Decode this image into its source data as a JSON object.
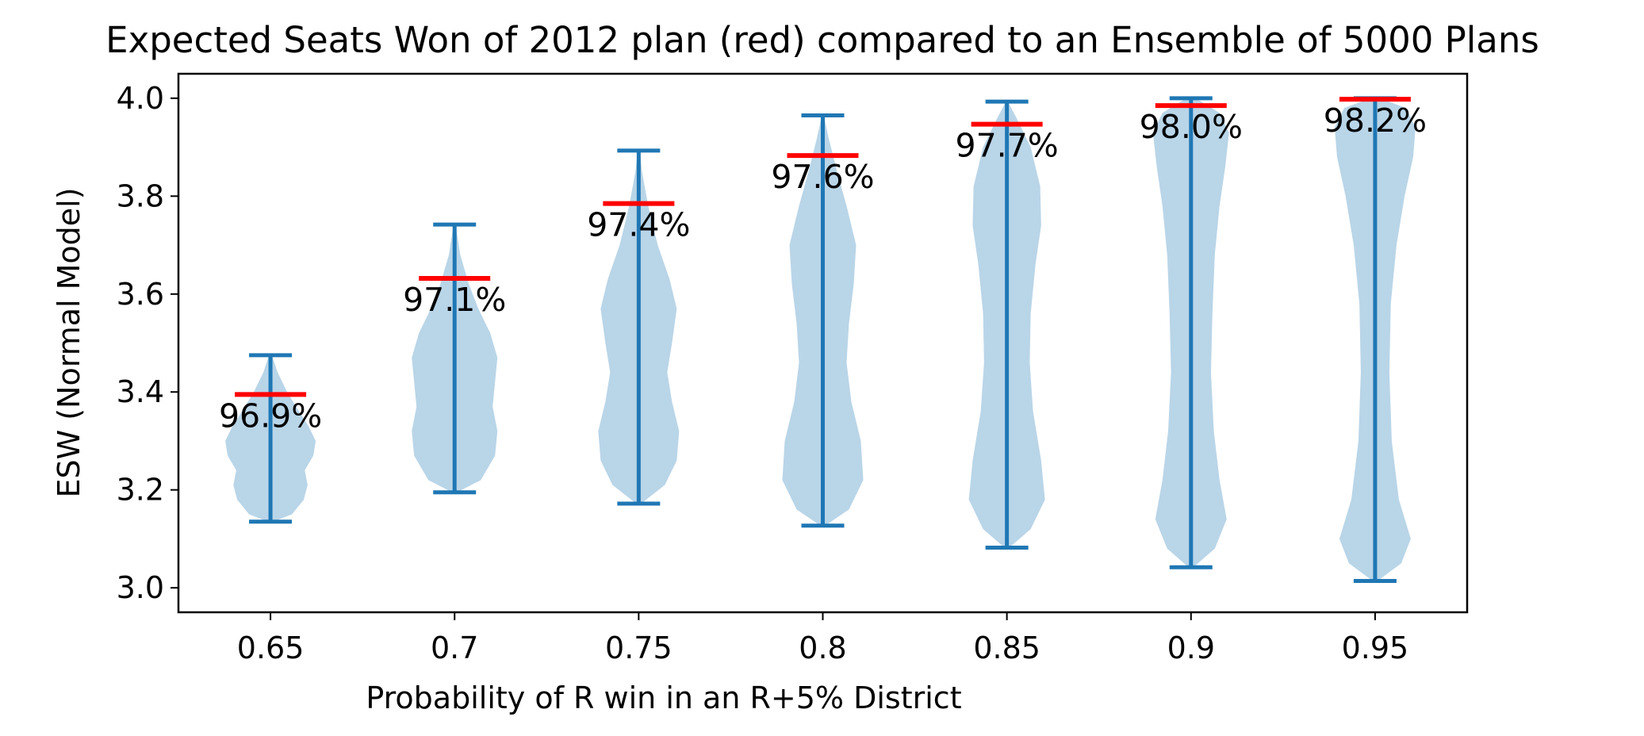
{
  "chart_data": {
    "type": "violin",
    "title": "Expected Seats Won of 2012 plan (red) compared to an Ensemble of 5000 Plans",
    "xlabel": "Probability of R win in an R+5% District",
    "ylabel": "ESW (Normal Model)",
    "ylim": [
      2.95,
      4.05
    ],
    "yticks": [
      "3.0",
      "3.2",
      "3.4",
      "3.6",
      "3.8",
      "4.0"
    ],
    "categories": [
      "0.65",
      "0.7",
      "0.75",
      "0.8",
      "0.85",
      "0.9",
      "0.95"
    ],
    "ensemble_min": [
      3.135,
      3.195,
      3.172,
      3.127,
      3.082,
      3.042,
      3.014
    ],
    "ensemble_max": [
      3.475,
      3.742,
      3.893,
      3.965,
      3.993,
      4.0,
      4.0
    ],
    "plan_2012_value": [
      3.395,
      3.632,
      3.785,
      3.883,
      3.947,
      3.985,
      3.998
    ],
    "percentile_labels": [
      "96.9%",
      "97.1%",
      "97.4%",
      "97.6%",
      "97.7%",
      "98.0%",
      "98.2%"
    ],
    "violin_profiles": [
      [
        [
          3.135,
          0.05
        ],
        [
          3.15,
          0.45
        ],
        [
          3.18,
          0.7
        ],
        [
          3.21,
          0.78
        ],
        [
          3.24,
          0.72
        ],
        [
          3.27,
          0.9
        ],
        [
          3.3,
          0.95
        ],
        [
          3.33,
          0.8
        ],
        [
          3.36,
          0.6
        ],
        [
          3.4,
          0.35
        ],
        [
          3.44,
          0.15
        ],
        [
          3.475,
          0.03
        ]
      ],
      [
        [
          3.195,
          0.05
        ],
        [
          3.22,
          0.55
        ],
        [
          3.27,
          0.85
        ],
        [
          3.32,
          0.9
        ],
        [
          3.37,
          0.8
        ],
        [
          3.42,
          0.85
        ],
        [
          3.47,
          0.9
        ],
        [
          3.52,
          0.75
        ],
        [
          3.57,
          0.5
        ],
        [
          3.62,
          0.3
        ],
        [
          3.68,
          0.12
        ],
        [
          3.742,
          0.02
        ]
      ],
      [
        [
          3.172,
          0.05
        ],
        [
          3.21,
          0.55
        ],
        [
          3.26,
          0.8
        ],
        [
          3.32,
          0.85
        ],
        [
          3.38,
          0.7
        ],
        [
          3.44,
          0.6
        ],
        [
          3.5,
          0.7
        ],
        [
          3.57,
          0.8
        ],
        [
          3.63,
          0.65
        ],
        [
          3.7,
          0.4
        ],
        [
          3.78,
          0.2
        ],
        [
          3.85,
          0.07
        ],
        [
          3.893,
          0.02
        ]
      ],
      [
        [
          3.127,
          0.05
        ],
        [
          3.16,
          0.55
        ],
        [
          3.22,
          0.85
        ],
        [
          3.3,
          0.8
        ],
        [
          3.38,
          0.6
        ],
        [
          3.46,
          0.5
        ],
        [
          3.54,
          0.55
        ],
        [
          3.62,
          0.65
        ],
        [
          3.7,
          0.7
        ],
        [
          3.78,
          0.5
        ],
        [
          3.85,
          0.3
        ],
        [
          3.92,
          0.12
        ],
        [
          3.965,
          0.02
        ]
      ],
      [
        [
          3.082,
          0.05
        ],
        [
          3.12,
          0.5
        ],
        [
          3.18,
          0.8
        ],
        [
          3.26,
          0.72
        ],
        [
          3.36,
          0.55
        ],
        [
          3.46,
          0.48
        ],
        [
          3.56,
          0.5
        ],
        [
          3.66,
          0.6
        ],
        [
          3.74,
          0.72
        ],
        [
          3.82,
          0.7
        ],
        [
          3.9,
          0.5
        ],
        [
          3.96,
          0.2
        ],
        [
          3.993,
          0.02
        ]
      ],
      [
        [
          3.042,
          0.05
        ],
        [
          3.08,
          0.5
        ],
        [
          3.14,
          0.75
        ],
        [
          3.22,
          0.6
        ],
        [
          3.32,
          0.48
        ],
        [
          3.44,
          0.42
        ],
        [
          3.56,
          0.45
        ],
        [
          3.68,
          0.5
        ],
        [
          3.78,
          0.6
        ],
        [
          3.86,
          0.72
        ],
        [
          3.93,
          0.8
        ],
        [
          3.97,
          0.6
        ],
        [
          4.0,
          0.1
        ]
      ],
      [
        [
          3.014,
          0.05
        ],
        [
          3.05,
          0.55
        ],
        [
          3.1,
          0.75
        ],
        [
          3.18,
          0.5
        ],
        [
          3.3,
          0.35
        ],
        [
          3.44,
          0.3
        ],
        [
          3.58,
          0.33
        ],
        [
          3.7,
          0.45
        ],
        [
          3.8,
          0.62
        ],
        [
          3.88,
          0.8
        ],
        [
          3.94,
          0.85
        ],
        [
          3.98,
          0.65
        ],
        [
          4.0,
          0.1
        ]
      ]
    ],
    "colors": {
      "violin_fill": "#b9d5e8",
      "whisker": "#1f77b4",
      "plan_marker": "#ff0000"
    },
    "grid": false,
    "legend": "none"
  }
}
